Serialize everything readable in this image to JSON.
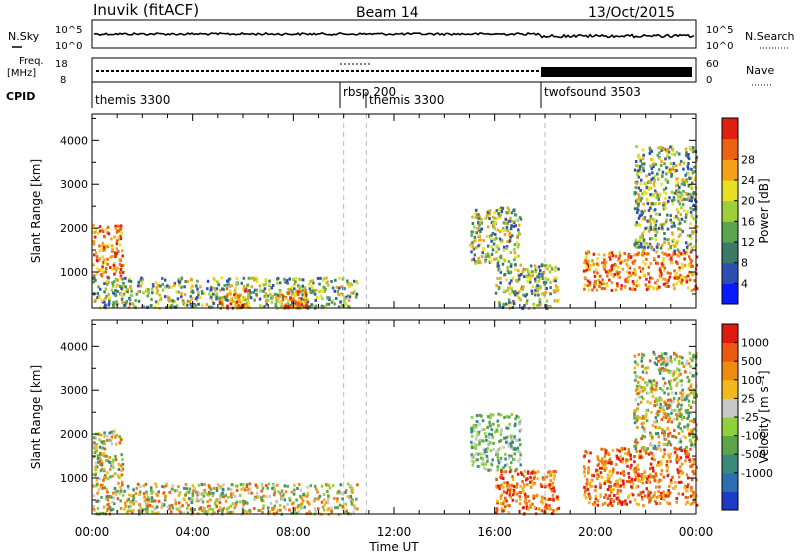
{
  "header": {
    "station": "Inuvik (fitACF)",
    "beam": "Beam 14",
    "date": "13/Oct/2015"
  },
  "strip1": {
    "left_label": "N.Sky",
    "right_label": "N.Search",
    "left_ticks": [
      "10^5",
      "10^0"
    ],
    "right_ticks": [
      "10^5",
      "10^0"
    ]
  },
  "strip2": {
    "left_label_top": "Freq.",
    "left_label_bottom": "[MHz]",
    "right_label": "Nave",
    "left_ticks": [
      "18",
      "8"
    ],
    "right_ticks": [
      "60",
      "0"
    ]
  },
  "cpid": {
    "label": "CPID",
    "segments": [
      {
        "name": "themis 3300",
        "start_hour": 0
      },
      {
        "name": "rbsp 200",
        "start_hour": 10.0
      },
      {
        "name": "themis 3300",
        "start_hour": 10.9
      },
      {
        "name": "twofsound 3503",
        "start_hour": 18.0
      }
    ]
  },
  "x_axis": {
    "title": "Time UT",
    "ticks": [
      "00:00",
      "04:00",
      "08:00",
      "12:00",
      "16:00",
      "20:00",
      "00:00"
    ]
  },
  "chart_data": [
    {
      "type": "heatmap",
      "panel": "power",
      "ylabel": "Slant Range [km]",
      "x_range_hours": [
        0,
        24
      ],
      "ylim": [
        180,
        4600
      ],
      "yticks": [
        1000,
        2000,
        3000,
        4000
      ],
      "colorbar": {
        "title": "Power [dB]",
        "ticks": [
          "4",
          "8",
          "12",
          "16",
          "20",
          "24",
          "28"
        ],
        "colors": [
          "#0a1aff",
          "#2f4fb0",
          "#3a7a66",
          "#5aa64e",
          "#9ccf38",
          "#e8e020",
          "#f3a118",
          "#ec6212",
          "#e02010"
        ]
      },
      "echo_regions": [
        {
          "t0": 0.0,
          "t1": 1.2,
          "r0": 900,
          "r1": 2100,
          "level": "high"
        },
        {
          "t0": 0.0,
          "t1": 10.5,
          "r0": 200,
          "r1": 900,
          "level": "medium"
        },
        {
          "t0": 5.0,
          "t1": 6.2,
          "r0": 200,
          "r1": 700,
          "level": "high"
        },
        {
          "t0": 7.5,
          "t1": 8.5,
          "r0": 200,
          "r1": 600,
          "level": "high"
        },
        {
          "t0": 15.0,
          "t1": 17.0,
          "r0": 1200,
          "r1": 2500,
          "level": "medium"
        },
        {
          "t0": 16.0,
          "t1": 18.5,
          "r0": 200,
          "r1": 1200,
          "level": "medium"
        },
        {
          "t0": 19.5,
          "t1": 24.0,
          "r0": 600,
          "r1": 1500,
          "level": "high"
        },
        {
          "t0": 21.5,
          "t1": 24.0,
          "r0": 1500,
          "r1": 3900,
          "level": "medium"
        }
      ]
    },
    {
      "type": "heatmap",
      "panel": "velocity",
      "ylabel": "Slant Range [km]",
      "x_range_hours": [
        0,
        24
      ],
      "ylim": [
        180,
        4600
      ],
      "yticks": [
        1000,
        2000,
        3000,
        4000
      ],
      "colorbar": {
        "title": "Velocity [m s⁻¹]",
        "ticks": [
          "1000",
          "500",
          "100",
          "25",
          "-25",
          "-100",
          "-500",
          "-1000"
        ],
        "colors": [
          "#1c3cc8",
          "#2a6fb0",
          "#3a8a7a",
          "#5aa648",
          "#8ed13a",
          "#c8c8c8",
          "#f2b81c",
          "#f08a10",
          "#ec5a12",
          "#e01a10"
        ]
      },
      "echo_regions": [
        {
          "t0": 0.0,
          "t1": 1.2,
          "r0": 900,
          "r1": 2100,
          "level": "mixed"
        },
        {
          "t0": 0.0,
          "t1": 10.5,
          "r0": 200,
          "r1": 900,
          "level": "mixed"
        },
        {
          "t0": 15.0,
          "t1": 17.0,
          "r0": 1200,
          "r1": 2500,
          "level": "toward"
        },
        {
          "t0": 16.0,
          "t1": 18.5,
          "r0": 200,
          "r1": 1200,
          "level": "away"
        },
        {
          "t0": 19.5,
          "t1": 24.0,
          "r0": 400,
          "r1": 1700,
          "level": "away"
        },
        {
          "t0": 21.5,
          "t1": 24.0,
          "r0": 1700,
          "r1": 3900,
          "level": "mixed"
        }
      ]
    }
  ]
}
